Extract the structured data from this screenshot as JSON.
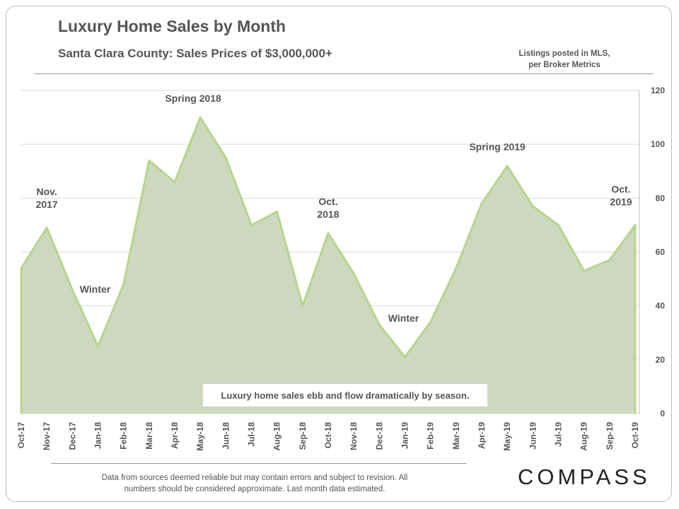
{
  "header": {
    "title": "Luxury Home Sales by Month",
    "subtitle": "Santa Clara County: Sales Prices of $3,000,000+",
    "source_note": [
      "Listings posted in MLS,",
      "per Broker Metrics"
    ]
  },
  "footer": {
    "disclaimer": [
      "Data from sources deemed reliable but may contain errors and subject to revision. All",
      "numbers should be considered approximate. Last month data estimated."
    ],
    "logo_text": "COMPASS"
  },
  "chart_data": {
    "type": "area",
    "categories": [
      "Oct-17",
      "Nov-17",
      "Dec-17",
      "Jan-18",
      "Feb-18",
      "Mar-18",
      "Apr-18",
      "May-18",
      "Jun-18",
      "Jul-18",
      "Aug-18",
      "Sep-18",
      "Oct-18",
      "Nov-18",
      "Dec-18",
      "Jan-19",
      "Feb-19",
      "Mar-19",
      "Apr-19",
      "May-19",
      "Jun-19",
      "Jul-19",
      "Aug-19",
      "Sep-19",
      "Oct-19"
    ],
    "values": [
      54,
      69,
      46,
      25,
      48,
      94,
      86,
      110,
      95,
      70,
      75,
      40,
      67,
      52,
      33,
      21,
      34,
      54,
      78,
      92,
      77,
      70,
      53,
      57,
      70
    ],
    "ylim": [
      0,
      120
    ],
    "yticks": [
      0,
      20,
      40,
      60,
      80,
      100,
      120
    ],
    "y_axis_side": "right",
    "grid": true,
    "fill_color": "#cdd8bf",
    "line_color": "#b6d68c",
    "annotations": [
      {
        "text": [
          "Nov.",
          "2017"
        ],
        "category": "Nov-17",
        "value": 69
      },
      {
        "text": [
          "Winter"
        ],
        "category": "Jan-18",
        "value": 25
      },
      {
        "text": [
          "Spring 2018"
        ],
        "category": "May-18",
        "value": 110
      },
      {
        "text": [
          "Oct.",
          "2018"
        ],
        "category": "Oct-18",
        "value": 67
      },
      {
        "text": [
          "Winter"
        ],
        "category": "Jan-19",
        "value": 21
      },
      {
        "text": [
          "Spring 2019"
        ],
        "category": "May-19",
        "value": 92
      },
      {
        "text": [
          "Oct.",
          "2019"
        ],
        "category": "Oct-19",
        "value": 70
      }
    ],
    "callout": "Luxury home sales ebb and flow dramatically by season."
  }
}
